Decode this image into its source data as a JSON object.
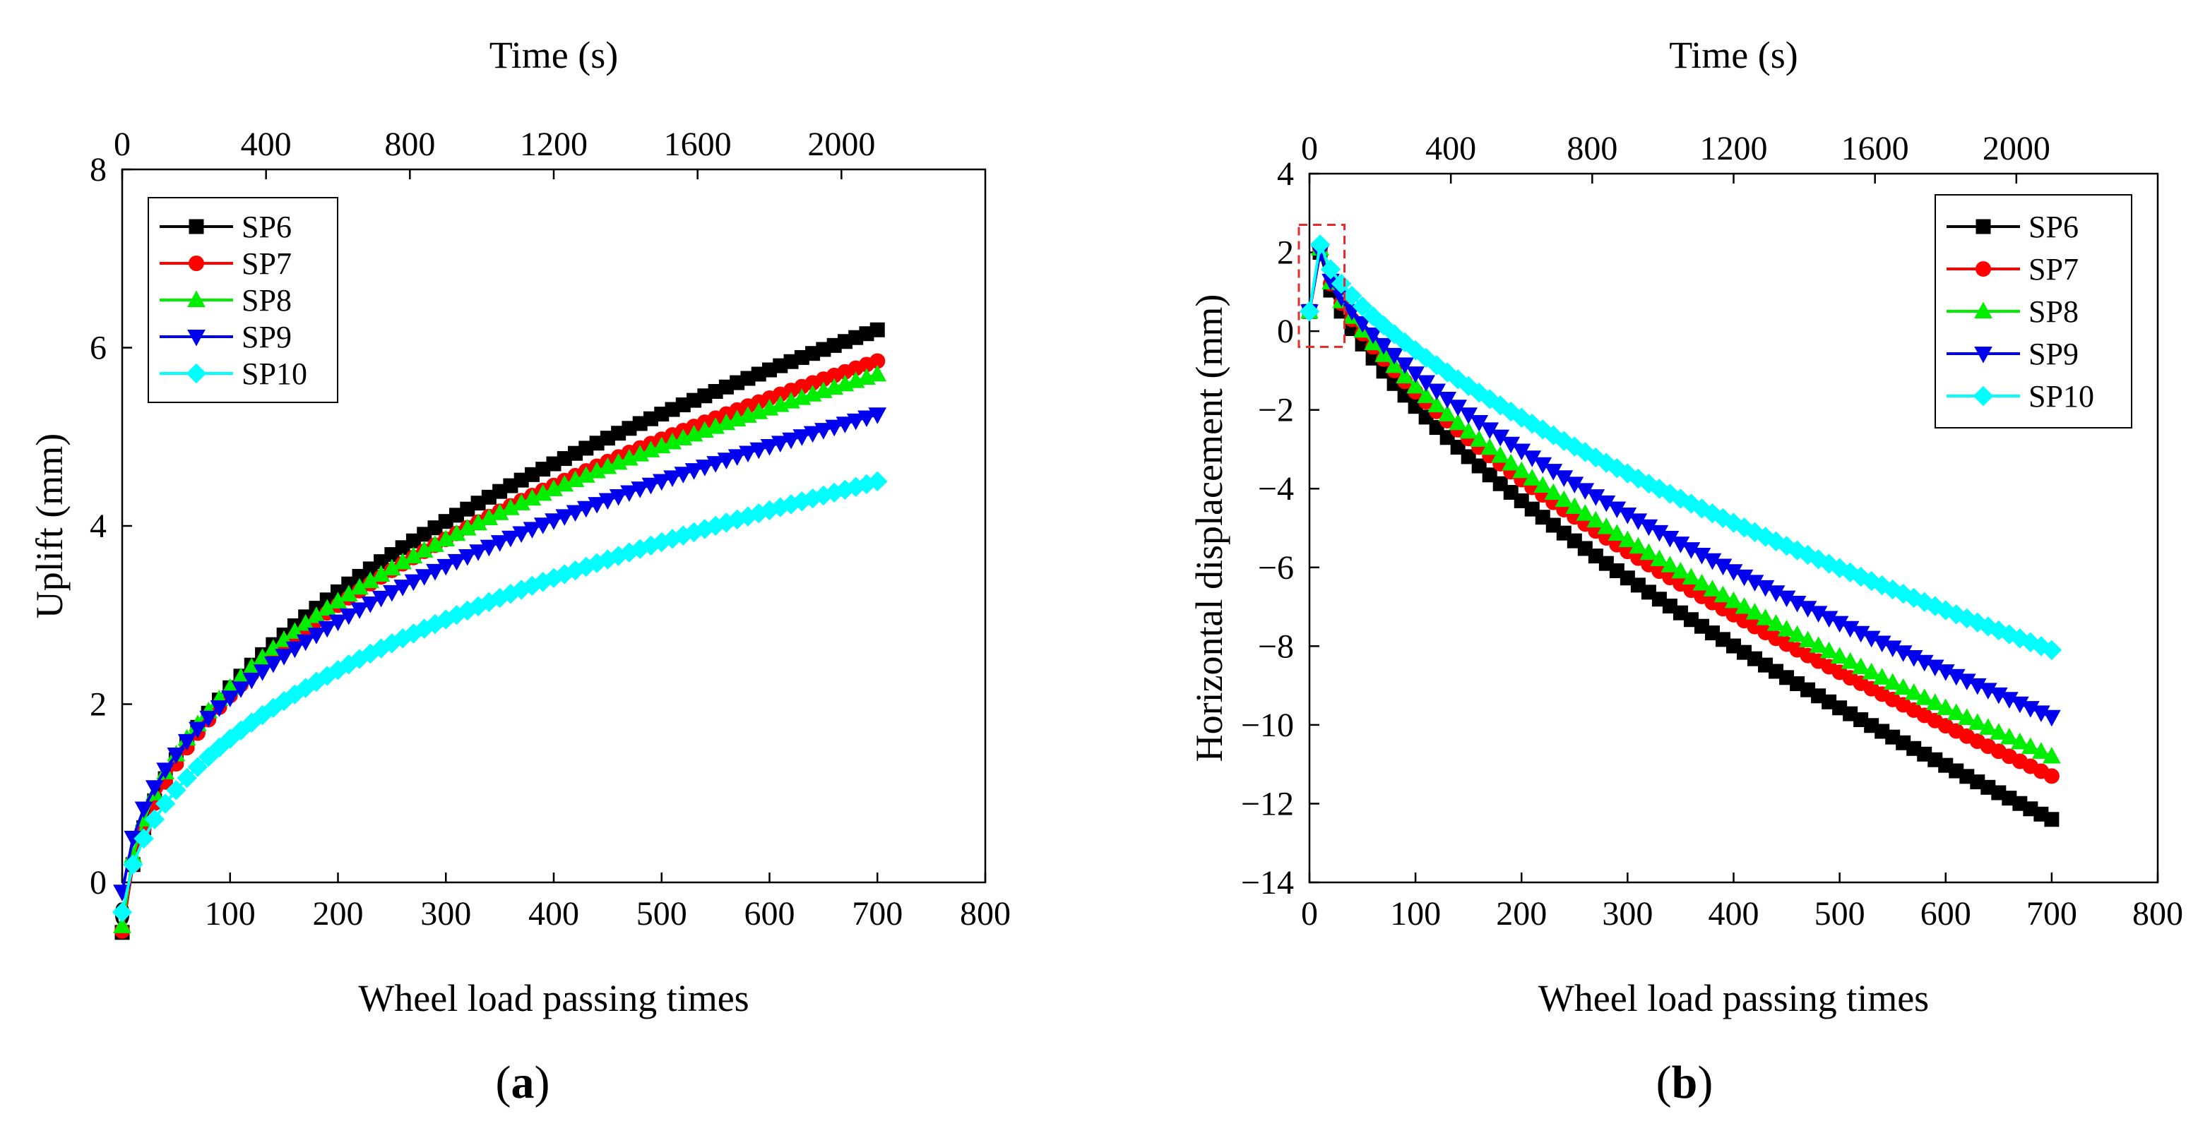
{
  "chart_data": [
    {
      "id": "a",
      "type": "line",
      "panel_label": "a",
      "xlabel": "Wheel load passing times",
      "ylabel": "Uplift (mm)",
      "top_xlabel": "Time (s)",
      "xlim": [
        0,
        800
      ],
      "ylim": [
        0,
        8
      ],
      "xticks": [
        "0",
        "100",
        "200",
        "300",
        "400",
        "500",
        "600",
        "700",
        "800"
      ],
      "yticks": [
        "0",
        "2",
        "4",
        "6",
        "8"
      ],
      "top_xlim": [
        0,
        2400
      ],
      "top_xticks": [
        "0",
        "400",
        "800",
        "1200",
        "1600",
        "2000"
      ],
      "legend_position": "top-left",
      "x_max": 700,
      "series": [
        {
          "name": "SP6",
          "color": "#000000",
          "marker": "square",
          "y_at_x": [
            [
              10,
              0.2
            ],
            [
              300,
              4.05
            ],
            [
              700,
              6.2
            ]
          ]
        },
        {
          "name": "SP7",
          "color": "#ff0000",
          "marker": "circle",
          "y_at_x": [
            [
              10,
              0.2
            ],
            [
              300,
              3.85
            ],
            [
              700,
              5.85
            ]
          ]
        },
        {
          "name": "SP8",
          "color": "#00ee00",
          "marker": "triangle-up",
          "y_at_x": [
            [
              10,
              0.3
            ],
            [
              300,
              3.85
            ],
            [
              700,
              5.7
            ]
          ]
        },
        {
          "name": "SP9",
          "color": "#0000ee",
          "marker": "triangle-down",
          "y_at_x": [
            [
              10,
              0.5
            ],
            [
              300,
              3.55
            ],
            [
              700,
              5.25
            ]
          ]
        },
        {
          "name": "SP10",
          "color": "#00ffff",
          "marker": "diamond",
          "y_at_x": [
            [
              10,
              0.2
            ],
            [
              300,
              2.95
            ],
            [
              700,
              4.5
            ]
          ]
        }
      ]
    },
    {
      "id": "b",
      "type": "line",
      "panel_label": "b",
      "xlabel": "Wheel load passing times",
      "ylabel": "Horizontal displacement (mm)",
      "top_xlabel": "Time (s)",
      "xlim": [
        0,
        800
      ],
      "ylim": [
        -14,
        4
      ],
      "xticks": [
        "0",
        "100",
        "200",
        "300",
        "400",
        "500",
        "600",
        "700",
        "800"
      ],
      "yticks": [
        "−14",
        "−12",
        "−10",
        "−8",
        "−6",
        "−4",
        "−2",
        "0",
        "2",
        "4"
      ],
      "top_xlim": [
        0,
        2400
      ],
      "top_xticks": [
        "0",
        "400",
        "800",
        "1200",
        "1600",
        "2000"
      ],
      "legend_position": "top-right",
      "x_max": 700,
      "initial_point": [
        0,
        0.5
      ],
      "peak_x": 10,
      "highlight_box": {
        "x": [
          -10,
          33
        ],
        "y": [
          -0.4,
          2.7
        ]
      },
      "series": [
        {
          "name": "SP6",
          "color": "#000000",
          "marker": "square",
          "peak": 2.0,
          "end": -12.4,
          "shape_p": 0.64
        },
        {
          "name": "SP7",
          "color": "#ff0000",
          "marker": "circle",
          "peak": 2.1,
          "end": -11.3,
          "shape_p": 0.64
        },
        {
          "name": "SP8",
          "color": "#00ee00",
          "marker": "triangle-up",
          "peak": 2.1,
          "end": -10.8,
          "shape_p": 0.64
        },
        {
          "name": "SP9",
          "color": "#0000ee",
          "marker": "triangle-down",
          "peak": 2.0,
          "end": -9.8,
          "shape_p": 0.66
        },
        {
          "name": "SP10",
          "color": "#00ffff",
          "marker": "diamond",
          "peak": 2.2,
          "end": -8.1,
          "shape_p": 0.66
        }
      ]
    }
  ]
}
